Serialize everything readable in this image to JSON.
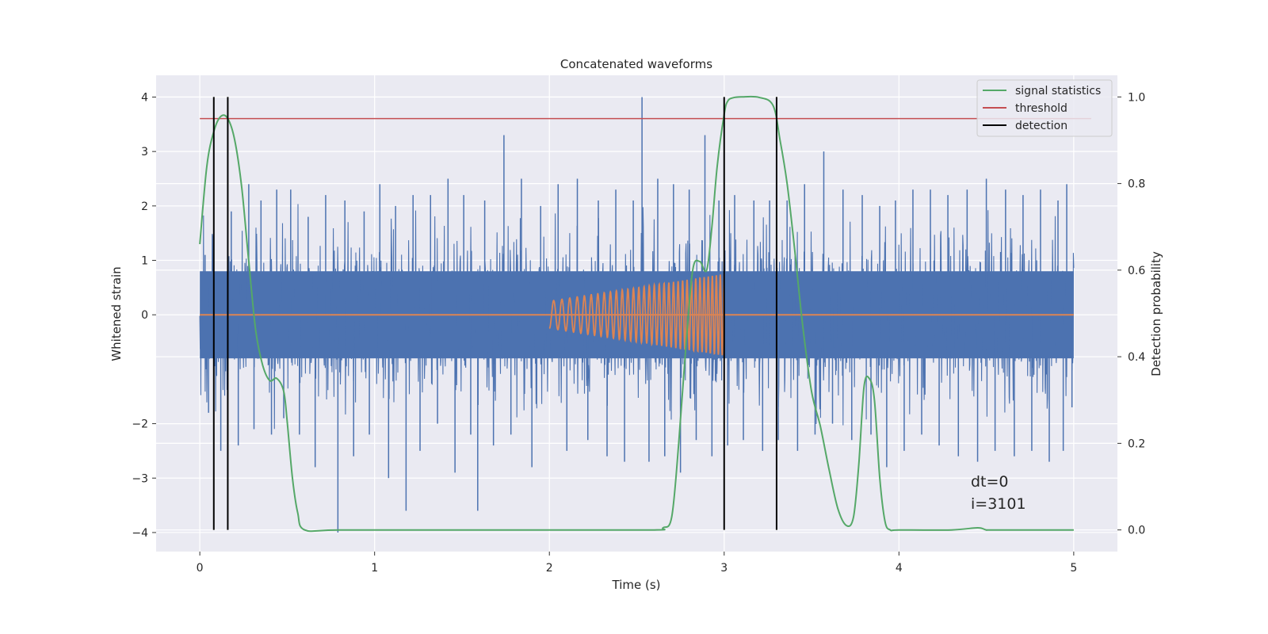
{
  "chart_data": {
    "type": "line",
    "title": "Concatenated waveforms",
    "xlabel": "Time (s)",
    "ylabel": "Whitened strain",
    "ylabel_right": "Detection probability",
    "xlim": [
      -0.25,
      5.25
    ],
    "ylim": [
      -4.35,
      4.4
    ],
    "ylim_right": [
      -0.05,
      1.05
    ],
    "xticks": [
      "0",
      "1",
      "2",
      "3",
      "4",
      "5"
    ],
    "yticks": [
      "4",
      "3",
      "2",
      "1",
      "0",
      "−2",
      "−3",
      "−4"
    ],
    "yticks_right": [
      "1.0",
      "0.8",
      "0.6",
      "0.4",
      "0.2",
      "0.0"
    ],
    "grid": true,
    "legend_position": "top-right",
    "legend": [
      "signal statistics",
      "threshold",
      "detection"
    ],
    "annotation_lines": [
      "dt=0",
      "i=3101"
    ],
    "colors": {
      "strain": "#4c72b0",
      "injected": "#dd8452",
      "signal_statistics": "#55a868",
      "threshold": "#c44e52",
      "detection": "#000000",
      "axes_background": "#eaeaf2",
      "grid": "#ffffff"
    },
    "strain": {
      "x_range": [
        0,
        5
      ],
      "band": [
        -0.8,
        0.8
      ],
      "spikes": [
        [
          0.03,
          1.1
        ],
        [
          0.05,
          -1.8
        ],
        [
          0.08,
          2.1
        ],
        [
          0.12,
          -2.5
        ],
        [
          0.18,
          1.9
        ],
        [
          0.22,
          -2.4
        ],
        [
          0.28,
          2.4
        ],
        [
          0.31,
          -2.1
        ],
        [
          0.35,
          2.1
        ],
        [
          0.41,
          -2.2
        ],
        [
          0.44,
          2.3
        ],
        [
          0.48,
          -1.9
        ],
        [
          0.52,
          2.3
        ],
        [
          0.57,
          -2.2
        ],
        [
          0.62,
          1.8
        ],
        [
          0.66,
          -2.8
        ],
        [
          0.72,
          2.2
        ],
        [
          0.79,
          -4.0
        ],
        [
          0.83,
          2.1
        ],
        [
          0.88,
          -2.6
        ],
        [
          0.94,
          1.9
        ],
        [
          0.97,
          -2.2
        ],
        [
          1.03,
          2.4
        ],
        [
          1.08,
          -3.0
        ],
        [
          1.12,
          2.0
        ],
        [
          1.18,
          -3.6
        ],
        [
          1.22,
          2.2
        ],
        [
          1.26,
          -2.5
        ],
        [
          1.32,
          2.2
        ],
        [
          1.36,
          -2.0
        ],
        [
          1.42,
          2.5
        ],
        [
          1.46,
          -2.9
        ],
        [
          1.51,
          2.2
        ],
        [
          1.55,
          -2.2
        ],
        [
          1.59,
          -3.6
        ],
        [
          1.63,
          2.1
        ],
        [
          1.68,
          -2.4
        ],
        [
          1.74,
          3.3
        ],
        [
          1.78,
          -2.2
        ],
        [
          1.84,
          2.5
        ],
        [
          1.9,
          -2.8
        ],
        [
          1.95,
          2.0
        ],
        [
          2.05,
          2.4
        ],
        [
          2.1,
          -2.5
        ],
        [
          2.16,
          2.5
        ],
        [
          2.22,
          -2.3
        ],
        [
          2.28,
          2.1
        ],
        [
          2.33,
          -2.6
        ],
        [
          2.38,
          2.3
        ],
        [
          2.43,
          -2.7
        ],
        [
          2.48,
          2.1
        ],
        [
          2.53,
          4.0
        ],
        [
          2.57,
          -2.7
        ],
        [
          2.62,
          2.5
        ],
        [
          2.66,
          -2.6
        ],
        [
          2.71,
          2.4
        ],
        [
          2.75,
          -2.9
        ],
        [
          2.8,
          2.3
        ],
        [
          2.84,
          -2.3
        ],
        [
          2.89,
          3.3
        ],
        [
          2.93,
          -2.6
        ],
        [
          2.97,
          2.1
        ],
        [
          3.02,
          -2.4
        ],
        [
          3.06,
          2.2
        ],
        [
          3.11,
          -2.3
        ],
        [
          3.17,
          2.1
        ],
        [
          3.22,
          -2.5
        ],
        [
          3.26,
          2.1
        ],
        [
          3.31,
          -2.3
        ],
        [
          3.36,
          2.1
        ],
        [
          3.42,
          -2.5
        ],
        [
          3.46,
          2.4
        ],
        [
          3.52,
          -2.2
        ],
        [
          3.57,
          3.0
        ],
        [
          3.62,
          -2.0
        ],
        [
          3.68,
          2.3
        ],
        [
          3.73,
          -2.3
        ],
        [
          3.79,
          2.2
        ],
        [
          3.84,
          -2.2
        ],
        [
          3.89,
          2.0
        ],
        [
          3.93,
          -2.8
        ],
        [
          3.98,
          2.1
        ],
        [
          4.03,
          -2.5
        ],
        [
          4.08,
          2.3
        ],
        [
          4.13,
          -2.2
        ],
        [
          4.18,
          2.3
        ],
        [
          4.23,
          -2.4
        ],
        [
          4.28,
          2.2
        ],
        [
          4.34,
          -2.6
        ],
        [
          4.39,
          2.3
        ],
        [
          4.45,
          -2.7
        ],
        [
          4.5,
          2.5
        ],
        [
          4.55,
          -2.5
        ],
        [
          4.61,
          2.3
        ],
        [
          4.66,
          -2.6
        ],
        [
          4.71,
          2.2
        ],
        [
          4.76,
          -2.5
        ],
        [
          4.81,
          2.3
        ],
        [
          4.86,
          -2.7
        ],
        [
          4.91,
          2.1
        ],
        [
          4.94,
          -2.5
        ],
        [
          4.96,
          2.4
        ],
        [
          4.99,
          -1.7
        ]
      ]
    },
    "injected_signal": {
      "x_start": 2.0,
      "x_end": 3.0,
      "amp_start": 0.25,
      "amp_end": 0.75,
      "freq_start": 20,
      "freq_end": 45
    },
    "signal_statistics": {
      "x": [
        0.0,
        0.04,
        0.08,
        0.12,
        0.16,
        0.2,
        0.24,
        0.28,
        0.32,
        0.36,
        0.4,
        0.44,
        0.48,
        0.5,
        0.53,
        0.56,
        0.6,
        0.8,
        1.5,
        2.0,
        2.6,
        2.65,
        2.7,
        2.74,
        2.78,
        2.82,
        2.86,
        2.9,
        2.93,
        2.96,
        3.0,
        3.02,
        3.05,
        3.1,
        3.2,
        3.28,
        3.32,
        3.36,
        3.4,
        3.45,
        3.5,
        3.55,
        3.6,
        3.65,
        3.7,
        3.74,
        3.77,
        3.8,
        3.83,
        3.86,
        3.89,
        3.92,
        3.95,
        4.0,
        4.3,
        4.45,
        4.5,
        4.55,
        5.0
      ],
      "y": [
        0.66,
        0.84,
        0.92,
        0.955,
        0.95,
        0.9,
        0.79,
        0.62,
        0.46,
        0.38,
        0.345,
        0.35,
        0.32,
        0.25,
        0.12,
        0.04,
        0.0,
        0.0,
        0.0,
        0.0,
        0.0,
        0.005,
        0.03,
        0.2,
        0.42,
        0.6,
        0.62,
        0.6,
        0.7,
        0.84,
        0.96,
        0.99,
        0.998,
        1.0,
        0.999,
        0.98,
        0.9,
        0.8,
        0.66,
        0.47,
        0.32,
        0.24,
        0.14,
        0.05,
        0.01,
        0.03,
        0.15,
        0.33,
        0.35,
        0.3,
        0.12,
        0.02,
        0.0,
        0.0,
        0.0,
        0.005,
        0.0,
        0.0,
        0.0
      ]
    },
    "threshold": {
      "value": 0.95,
      "x_range": [
        0,
        5.1
      ]
    },
    "detections": [
      0.08,
      0.16,
      3.0,
      3.3
    ]
  }
}
